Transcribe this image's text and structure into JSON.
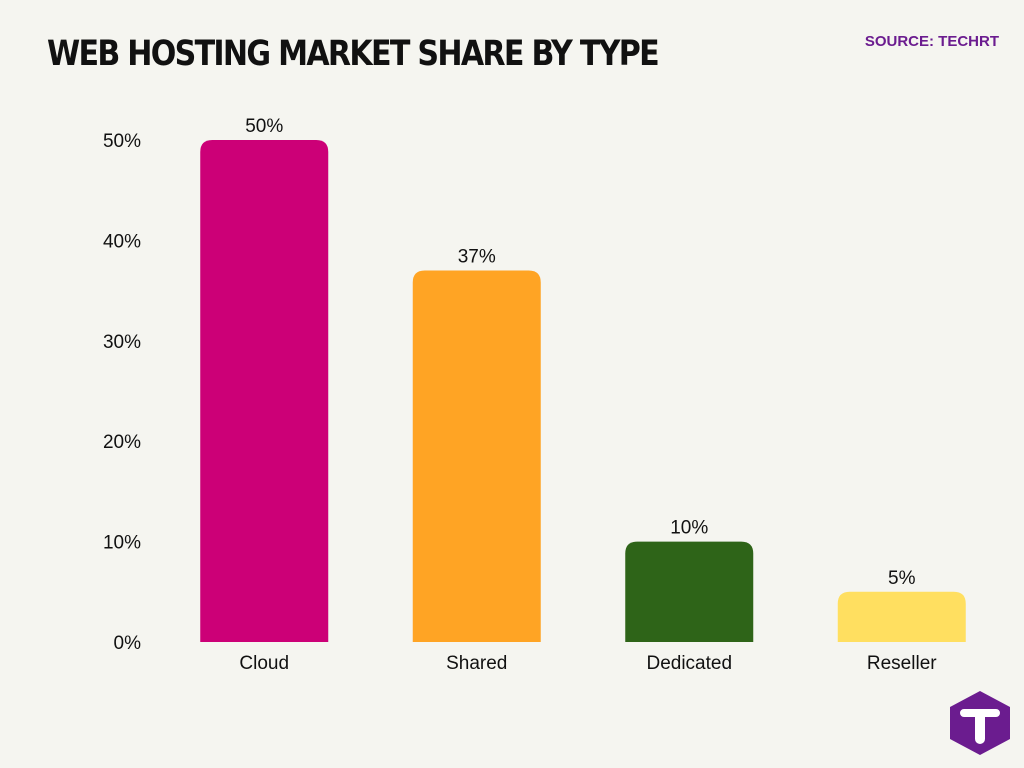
{
  "header": {
    "title": "WEB HOSTING MARKET SHARE BY TYPE",
    "source": "SOURCE: TECHRT"
  },
  "logo": {
    "icon": "techrt-t-logo-icon",
    "color": "#6b1c8f",
    "letter": "T"
  },
  "chart_data": {
    "type": "bar",
    "categories": [
      "Cloud",
      "Shared",
      "Dedicated",
      "Reseller"
    ],
    "values": [
      50,
      37,
      10,
      5
    ],
    "value_labels": [
      "50%",
      "37%",
      "10%",
      "5%"
    ],
    "colors": [
      "#cc0077",
      "#ffa424",
      "#2e6418",
      "#ffdf60"
    ],
    "title": "WEB HOSTING MARKET SHARE BY TYPE",
    "xlabel": "",
    "ylabel": "",
    "ylim": [
      0,
      50
    ],
    "yticks": [
      0,
      10,
      20,
      30,
      40,
      50
    ],
    "ytick_labels": [
      "0%",
      "10%",
      "20%",
      "30%",
      "40%",
      "50%"
    ],
    "grid": false,
    "legend": "none"
  }
}
